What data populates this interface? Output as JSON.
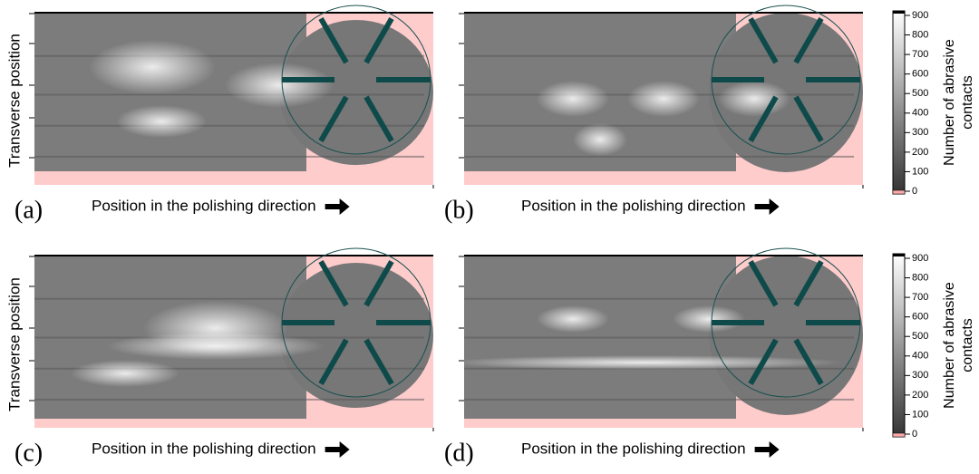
{
  "panels": [
    {
      "label": "(a)",
      "xlabel": "Position in the polishing direction"
    },
    {
      "label": "(b)",
      "xlabel": "Position in the polishing direction"
    },
    {
      "label": "(c)",
      "xlabel": "Position in the polishing direction"
    },
    {
      "label": "(d)",
      "xlabel": "Position in the polishing direction"
    }
  ],
  "rows": [
    {
      "ylabel": "Transverse position",
      "colorbar": {
        "ticks": [
          0,
          100,
          200,
          300,
          400,
          500,
          600,
          700,
          800,
          900
        ],
        "title_lines": [
          "Number of abrasive",
          "contacts"
        ]
      }
    },
    {
      "ylabel": "Transverse position",
      "colorbar": {
        "ticks": [
          0,
          100,
          200,
          300,
          400,
          500,
          600,
          700,
          800,
          900
        ],
        "title_lines": [
          "Number of abrasive",
          "contacts"
        ]
      }
    }
  ]
}
